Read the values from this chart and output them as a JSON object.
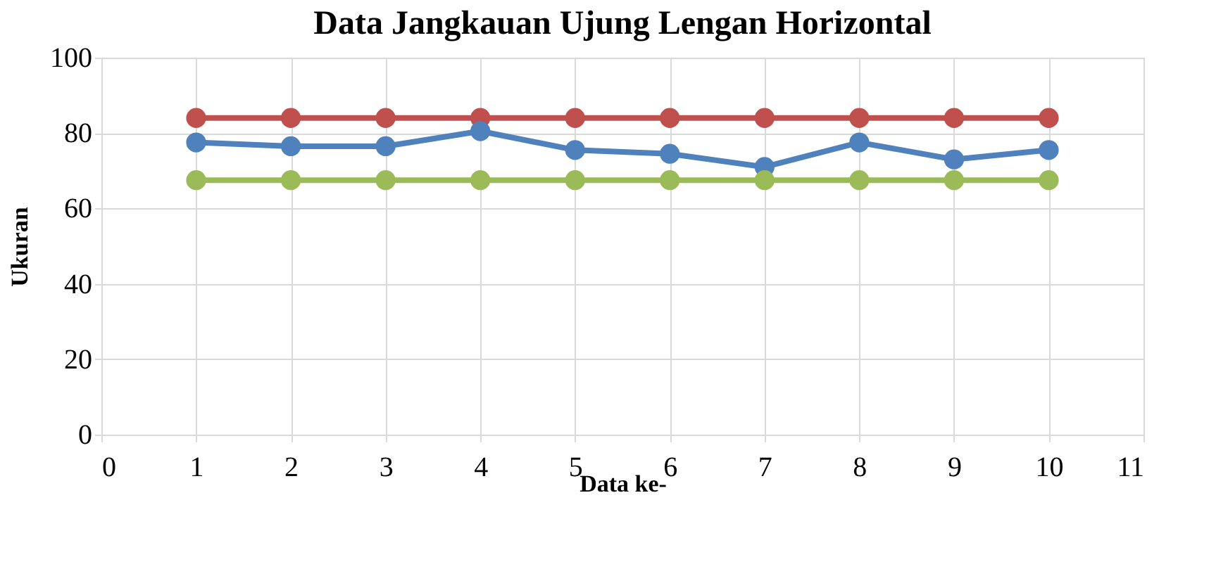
{
  "chart_data": {
    "type": "line",
    "title": "Data Jangkauan Ujung Lengan Horizontal",
    "xlabel": "Data ke-",
    "ylabel": "Ukuran",
    "x": [
      1,
      2,
      3,
      4,
      5,
      6,
      7,
      8,
      9,
      10
    ],
    "series": [
      {
        "color": "#c0504d",
        "values": [
          84,
          84,
          84,
          84,
          84,
          84,
          84,
          84,
          84,
          84
        ]
      },
      {
        "color": "#4f81bd",
        "values": [
          77.5,
          76.5,
          76.5,
          80.5,
          75.5,
          74.5,
          71,
          77.5,
          73,
          75.5
        ]
      },
      {
        "color": "#9bbb59",
        "values": [
          67.5,
          67.5,
          67.5,
          67.5,
          67.5,
          67.5,
          67.5,
          67.5,
          67.5,
          67.5
        ]
      }
    ],
    "xlim": [
      0,
      11
    ],
    "xticks": [
      0,
      1,
      2,
      3,
      4,
      5,
      6,
      7,
      8,
      9,
      10,
      11
    ],
    "ylim": [
      0,
      100
    ],
    "yticks": [
      0,
      20,
      40,
      60,
      80,
      100
    ],
    "grid": true,
    "legend": false,
    "marker": "circle",
    "line_style": "solid"
  }
}
